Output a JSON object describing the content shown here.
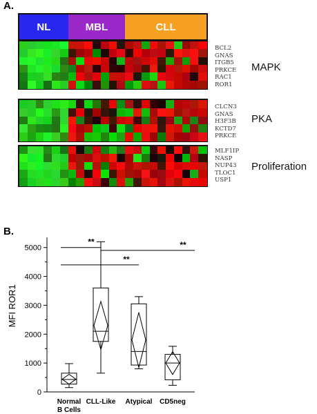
{
  "panel_a": {
    "label": "A.",
    "groups": [
      {
        "name": "NL",
        "color": "#2727f0",
        "cols": 6
      },
      {
        "name": "MBL",
        "color": "#9a27c8",
        "cols": 7
      },
      {
        "name": "CLL",
        "color": "#f7a124",
        "cols": 10
      }
    ],
    "blocks": [
      {
        "pathway": "MAPK",
        "genes": [
          "BCL2",
          "GNAS",
          "ITGB5",
          "PRKCE",
          "RAC1",
          "ROR1"
        ]
      },
      {
        "pathway": "PKA",
        "genes": [
          "CLCN3",
          "GNAS",
          "H3F3B",
          "KCTD7",
          "PRKCE"
        ]
      },
      {
        "pathway": "Proliferation",
        "genes": [
          "MLF1IP",
          "NASP",
          "NUP43",
          "TLOC1",
          "USP1"
        ]
      }
    ]
  },
  "panel_b": {
    "label": "B.",
    "chart_data": {
      "type": "box",
      "ylabel": "MFI ROR1",
      "ylim": [
        0,
        5400
      ],
      "yticks": [
        0,
        1000,
        2000,
        3000,
        4000,
        5000
      ],
      "categories": [
        "Normal\nB Cells",
        "CLL-Like",
        "Atypical",
        "CD5neg"
      ],
      "boxes": [
        {
          "category": "Normal B Cells",
          "min": 150,
          "q1": 270,
          "median": 430,
          "q3": 650,
          "max": 980,
          "mean": 440
        },
        {
          "category": "CLL-Like",
          "min": 650,
          "q1": 1750,
          "median": 2100,
          "q3": 3600,
          "max": 5200,
          "mean": 2300
        },
        {
          "category": "Atypical",
          "min": 800,
          "q1": 930,
          "median": 1400,
          "q3": 3050,
          "max": 3300,
          "mean": 1800
        },
        {
          "category": "CD5neg",
          "min": 230,
          "q1": 420,
          "median": 1000,
          "q3": 1300,
          "max": 1580,
          "mean": 1000
        }
      ],
      "significance": [
        {
          "label": "**",
          "from": "Normal B Cells",
          "to": "CLL-Like",
          "y": 4400
        },
        {
          "label": "**",
          "from": "Normal B Cells",
          "to": "Atypical",
          "y": 4400
        },
        {
          "label": "**",
          "from": "CLL-Like",
          "to": "CD5neg",
          "y": 4300
        }
      ],
      "significance_top": {
        "label": "**",
        "from": "Normal B Cells",
        "to": "CLL-Like",
        "y": 5300
      },
      "significance_right": {
        "label": "**",
        "from": "CLL-Like",
        "to": "CD5neg",
        "y": 5200
      }
    }
  }
}
